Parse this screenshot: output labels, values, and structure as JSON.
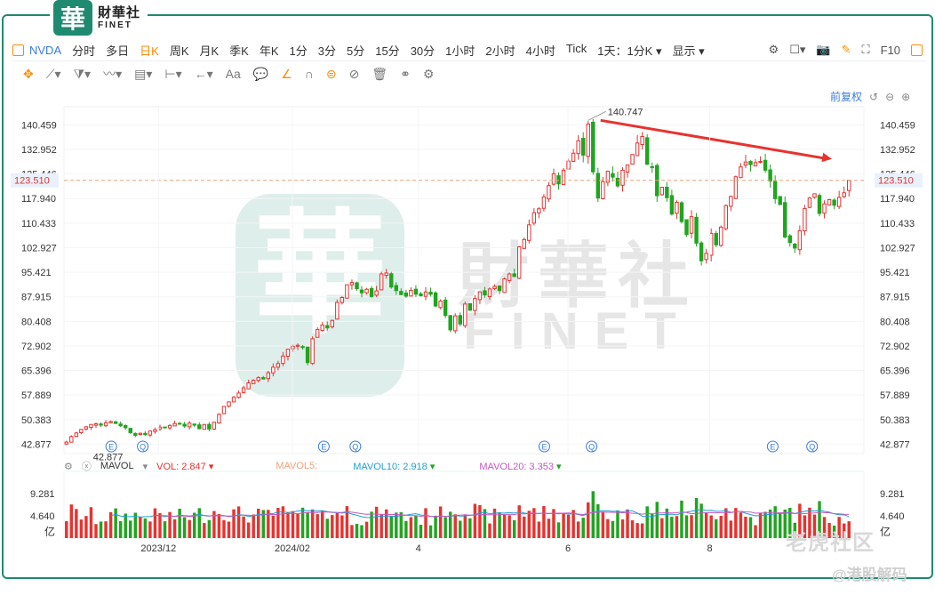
{
  "header": {
    "logo_glyph": "華",
    "logo_cn": "財華社",
    "logo_en": "FINET"
  },
  "toolbar": {
    "symbol": "NVDA",
    "periods": [
      "分时",
      "多日",
      "日K",
      "周K",
      "月K",
      "季K",
      "年K",
      "1分",
      "3分",
      "5分",
      "15分",
      "30分",
      "1小时",
      "2小时",
      "4小时",
      "Tick"
    ],
    "active_period": "日K",
    "interval_select": "1天：1分K",
    "display_select": "显示",
    "f10": "F10"
  },
  "adjust": {
    "label": "前复权"
  },
  "watermark": {
    "cn": "財華社",
    "en": "FINET",
    "glyph": "華",
    "corner1": "老虎社区",
    "corner2": "@港股解码"
  },
  "colors": {
    "up": "#e8322f",
    "down": "#1fa51f",
    "brand": "#1f8a70",
    "accent": "#3a7be0",
    "ma5": "#f0a27a",
    "ma10": "#1e9fd6",
    "ma20": "#c657c6"
  },
  "volume_legend": {
    "name": "MAVOL",
    "vol": "VOL: 2.847",
    "ma5": "MAVOL5:",
    "ma10": "MAVOL10: 2.918",
    "ma20": "MAVOL20: 3.353"
  },
  "chart_data": {
    "type": "candlestick",
    "price_axis": {
      "ylim": [
        40.0,
        146.0
      ],
      "ticks": [
        "140.459",
        "132.952",
        "125.446",
        "117.940",
        "110.433",
        "102.927",
        "95.421",
        "87.915",
        "80.408",
        "72.902",
        "65.396",
        "57.889",
        "50.383",
        "42.877"
      ]
    },
    "volume_axis": {
      "ylim": [
        0,
        13.0
      ],
      "ticks": [
        "9.281",
        "4.640"
      ],
      "unit": "亿"
    },
    "x_ticks": [
      "2023/12",
      "2024/02",
      "4",
      "6",
      "8"
    ],
    "current_price": "123.510",
    "annotations": {
      "high": "140.747",
      "low": "42.877"
    },
    "trend_arrow": {
      "from": 140.747,
      "to": 129.5
    },
    "event_markers": [
      "E",
      "Q",
      "E",
      "Q",
      "E",
      "Q",
      "E",
      "Q"
    ],
    "closes": [
      43.5,
      45.2,
      46.3,
      47.4,
      48.2,
      48.9,
      49.1,
      48.7,
      49.4,
      49.8,
      49.2,
      48.5,
      47.9,
      46.4,
      45.6,
      46.2,
      45.8,
      46.9,
      47.3,
      48.1,
      48.0,
      48.6,
      49.2,
      49.0,
      48.4,
      49.3,
      48.7,
      47.6,
      48.9,
      47.5,
      49.6,
      52.0,
      54.4,
      55.8,
      57.2,
      58.5,
      60.1,
      61.6,
      62.4,
      63.2,
      62.8,
      64.7,
      66.4,
      67.5,
      69.8,
      71.9,
      72.8,
      73.1,
      72.4,
      67.8,
      75.1,
      77.9,
      79.3,
      78.4,
      80.7,
      86.2,
      87.7,
      91.6,
      92.3,
      90.4,
      89.1,
      90.2,
      88.0,
      89.7,
      94.9,
      95.2,
      90.9,
      89.8,
      88.6,
      88.1,
      89.9,
      88.7,
      88.2,
      89.4,
      88.7,
      85.1,
      86.6,
      82.2,
      77.8,
      82.1,
      79.6,
      85.7,
      83.8,
      87.4,
      89.4,
      88.5,
      90.3,
      91.1,
      89.8,
      93.4,
      94.9,
      94.1,
      103.2,
      105.4,
      109.9,
      113.6,
      114.8,
      118.4,
      121.9,
      125.5,
      122.4,
      126.6,
      129.4,
      131.8,
      135.6,
      131.2,
      140.7,
      126.1,
      118.1,
      123.1,
      126.3,
      124.5,
      121.8,
      126.6,
      128.2,
      131.4,
      134.9,
      136.9,
      128.4,
      127.4,
      118.8,
      121.4,
      118.2,
      113.2,
      116.8,
      110.9,
      106.9,
      112.4,
      104.3,
      98.9,
      101.2,
      107.3,
      103.8,
      109.2,
      115.8,
      118.6,
      124.6,
      127.6,
      129.1,
      128.3,
      128.9,
      129.3,
      126.6,
      123.3,
      117.9,
      116.1,
      106.2,
      104.5,
      102.8,
      108.1,
      114.9,
      118.1,
      119.4,
      113.4,
      116.3,
      117.6,
      115.9,
      118.3,
      119.7,
      123.5
    ]
  }
}
